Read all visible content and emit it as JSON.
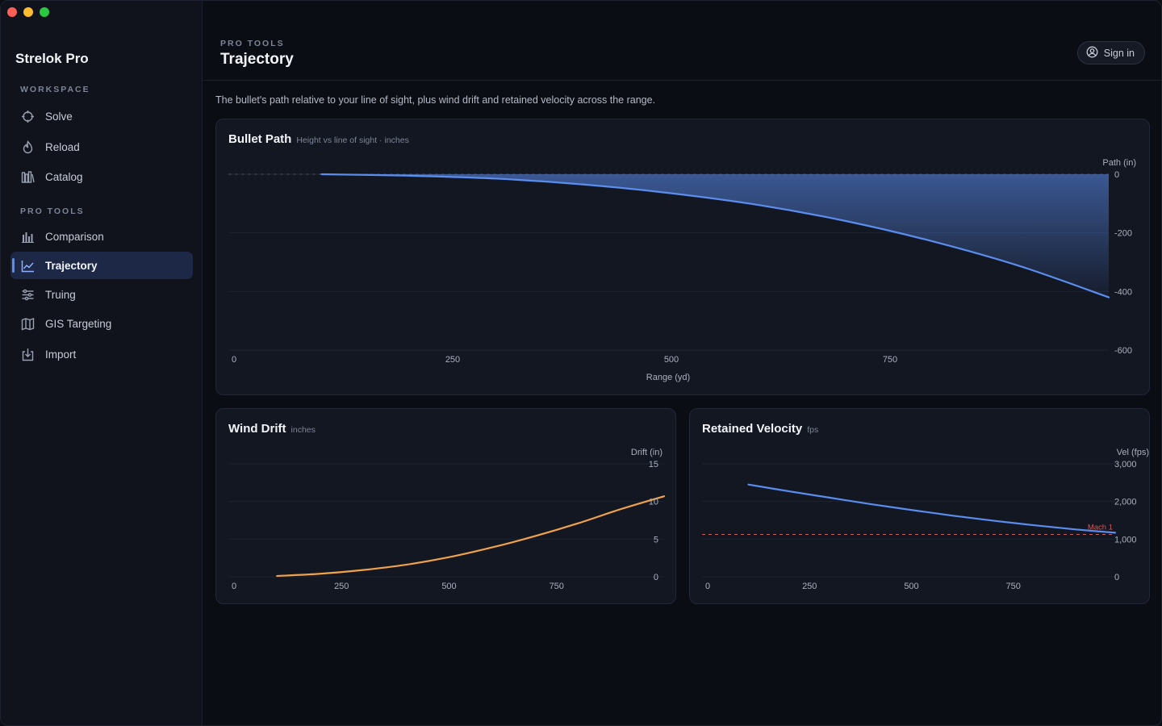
{
  "app": {
    "name": "Strelok Pro"
  },
  "sidebar": {
    "sections": [
      {
        "label": "WORKSPACE",
        "items": [
          {
            "label": "Solve",
            "icon": "crosshair-icon"
          },
          {
            "label": "Reload",
            "icon": "flame-icon"
          },
          {
            "label": "Catalog",
            "icon": "library-icon"
          }
        ]
      },
      {
        "label": "PRO TOOLS",
        "items": [
          {
            "label": "Comparison",
            "icon": "bar-chart-icon"
          },
          {
            "label": "Trajectory",
            "icon": "line-chart-icon",
            "active": true
          },
          {
            "label": "Truing",
            "icon": "sliders-icon"
          },
          {
            "label": "GIS Targeting",
            "icon": "map-icon"
          },
          {
            "label": "Import",
            "icon": "import-icon"
          }
        ]
      }
    ]
  },
  "header": {
    "breadcrumb": "PRO TOOLS",
    "title": "Trajectory",
    "signin_label": "Sign in"
  },
  "description": "The bullet's path relative to your line of sight, plus wind drift and retained velocity across the range.",
  "colors": {
    "accent": "#5b8def",
    "drift": "#f0a24a",
    "mach": "#d0585a"
  },
  "charts": {
    "path": {
      "title": "Bullet Path",
      "subtitle": "Height vs line of sight · inches"
    },
    "drift": {
      "title": "Wind Drift",
      "subtitle": "inches"
    },
    "velocity": {
      "title": "Retained Velocity",
      "subtitle": "fps"
    }
  },
  "chart_data": [
    {
      "type": "area",
      "title": "Bullet Path",
      "subtitle": "Height vs line of sight · inches",
      "xlabel": "Range (yd)",
      "ylabel": "Path (in)",
      "xlim": [
        0,
        1000
      ],
      "ylim": [
        -600,
        0
      ],
      "x_ticks": [
        0,
        250,
        500,
        750
      ],
      "x_tick_labels": [
        "0",
        "250",
        "500",
        "750"
      ],
      "y_ticks": [
        0,
        -200,
        -400,
        -600
      ],
      "y_tick_labels": [
        "0",
        "-200",
        "-400",
        "-600"
      ],
      "grid": true,
      "reference_line": 0,
      "x": [
        100,
        200,
        300,
        400,
        500,
        600,
        700,
        800,
        900,
        1000
      ],
      "values": [
        0,
        -5,
        -15,
        -35,
        -65,
        -105,
        -160,
        -230,
        -315,
        -420
      ]
    },
    {
      "type": "line",
      "title": "Wind Drift",
      "subtitle": "inches",
      "ylabel": "Drift (in)",
      "xlim": [
        0,
        1000
      ],
      "ylim": [
        0,
        15
      ],
      "x_ticks": [
        0,
        250,
        500,
        750
      ],
      "x_tick_labels": [
        "0",
        "250",
        "500",
        "750"
      ],
      "y_ticks": [
        0,
        5,
        10,
        15
      ],
      "y_tick_labels": [
        "0",
        "5",
        "10",
        "15"
      ],
      "grid": true,
      "x": [
        100,
        200,
        300,
        400,
        500,
        600,
        700,
        800,
        900,
        1000
      ],
      "values": [
        0.1,
        0.4,
        0.9,
        1.6,
        2.6,
        3.9,
        5.4,
        7.1,
        9.0,
        10.7
      ]
    },
    {
      "type": "line",
      "title": "Retained Velocity",
      "subtitle": "fps",
      "ylabel": "Vel (fps)",
      "xlim": [
        0,
        1000
      ],
      "ylim": [
        0,
        3000
      ],
      "x_ticks": [
        0,
        250,
        500,
        750
      ],
      "x_tick_labels": [
        "0",
        "250",
        "500",
        "750"
      ],
      "y_ticks": [
        0,
        1000,
        2000,
        3000
      ],
      "y_tick_labels": [
        "0",
        "1,000",
        "2,000",
        "3,000"
      ],
      "grid": true,
      "reference_line": 1125,
      "reference_label": "Mach 1",
      "x": [
        100,
        200,
        300,
        400,
        500,
        600,
        700,
        800,
        900,
        1000
      ],
      "values": [
        2450,
        2270,
        2100,
        1930,
        1775,
        1625,
        1490,
        1370,
        1260,
        1170
      ]
    }
  ]
}
